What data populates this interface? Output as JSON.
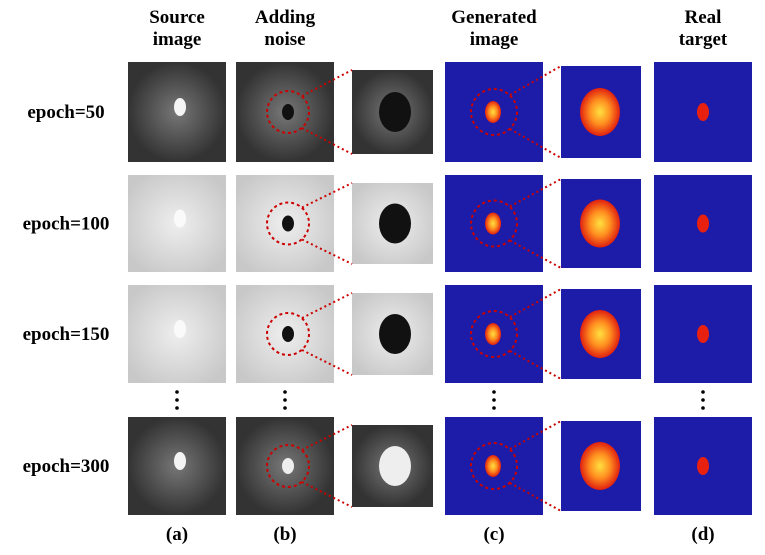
{
  "header": {
    "columns": [
      [
        "Source",
        "image"
      ],
      [
        "Adding",
        "noise"
      ],
      [
        "Generated",
        "image"
      ],
      [
        "Real",
        "target"
      ]
    ]
  },
  "rows": [
    {
      "label": "epoch=50"
    },
    {
      "label": "epoch=100"
    },
    {
      "label": "epoch=150"
    },
    {
      "label": "epoch=300"
    }
  ],
  "panels": [
    "(a)",
    "(b)",
    "(c)",
    "(d)"
  ]
}
